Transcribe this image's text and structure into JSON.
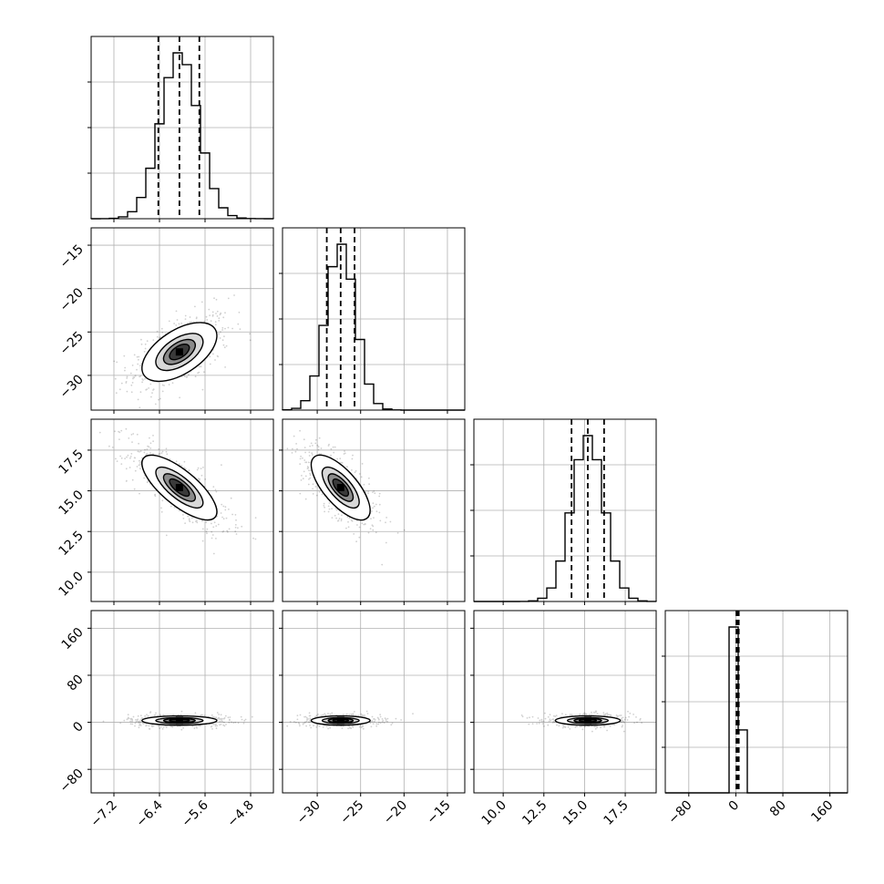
{
  "chart_data": {
    "type": "corner",
    "grid": true,
    "parameters": [
      {
        "range": [
          -7.6,
          -4.4
        ],
        "ticks": [
          -7.2,
          -6.4,
          -5.6,
          -4.8
        ],
        "tick_labels": [
          "−7.2",
          "−6.4",
          "−5.6",
          "−4.8"
        ],
        "mean": -6.05,
        "sd": 0.33,
        "quantiles": [
          -6.42,
          -6.05,
          -5.7
        ]
      },
      {
        "range": [
          -34,
          -13
        ],
        "ticks": [
          -30,
          -25,
          -20,
          -15
        ],
        "tick_labels": [
          "−30",
          "−25",
          "−20",
          "−15"
        ],
        "mean": -27.3,
        "sd": 1.7,
        "quantiles": [
          -28.9,
          -27.3,
          -25.7
        ]
      },
      {
        "range": [
          8.2,
          19.4
        ],
        "ticks": [
          10.0,
          12.5,
          15.0,
          17.5
        ],
        "tick_labels": [
          "10.0",
          "12.5",
          "15.0",
          "17.5"
        ],
        "mean": 15.2,
        "sd": 1.0,
        "quantiles": [
          14.2,
          15.2,
          16.2
        ]
      },
      {
        "range": [
          -120,
          190
        ],
        "ticks": [
          -80,
          0,
          80,
          160
        ],
        "tick_labels": [
          "−80",
          "0",
          "80",
          "160"
        ],
        "mean": 3,
        "sd": 4,
        "quantiles": [
          1,
          3,
          5
        ]
      }
    ],
    "correlations": {
      "0-1": 0.55,
      "0-2": -0.75,
      "1-2": -0.7,
      "0-3": 0.0,
      "1-3": 0.0,
      "2-3": 0.0
    }
  }
}
